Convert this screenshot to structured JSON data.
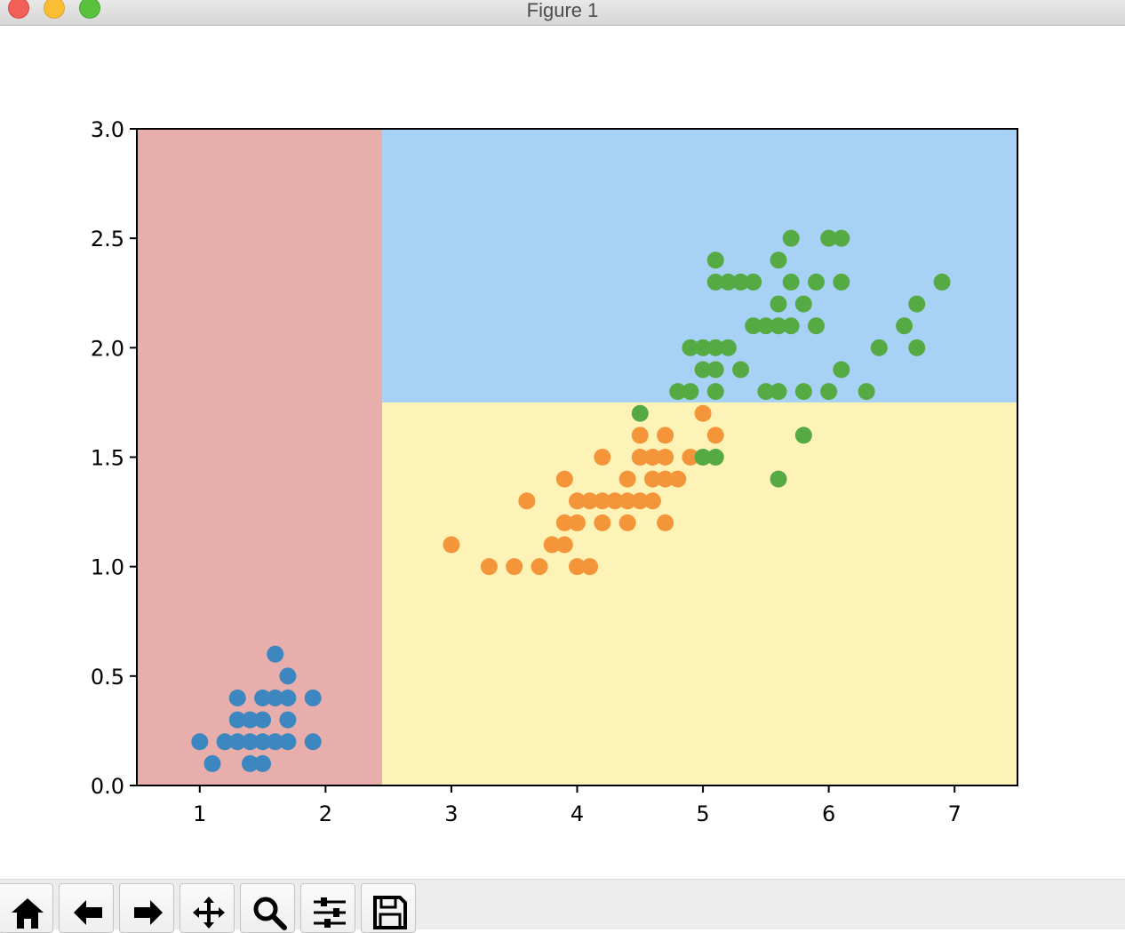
{
  "window": {
    "title": "Figure 1",
    "controls": [
      "close",
      "minimize",
      "maximize"
    ]
  },
  "toolbar": {
    "buttons": [
      {
        "name": "home-button",
        "icon": "home-icon"
      },
      {
        "name": "back-button",
        "icon": "arrow-left-icon"
      },
      {
        "name": "forward-button",
        "icon": "arrow-right-icon"
      },
      {
        "name": "pan-button",
        "icon": "move-icon"
      },
      {
        "name": "zoom-button",
        "icon": "magnifier-icon"
      },
      {
        "name": "configure-subplots-button",
        "icon": "sliders-icon"
      },
      {
        "name": "save-button",
        "icon": "floppy-disk-icon"
      }
    ]
  },
  "chart_data": {
    "type": "scatter",
    "title": "",
    "xlabel": "",
    "ylabel": "",
    "xlim": [
      0.5,
      7.5
    ],
    "ylim": [
      0.0,
      3.0
    ],
    "xticks": [
      "1",
      "2",
      "3",
      "4",
      "5",
      "6",
      "7"
    ],
    "yticks": [
      "0.0",
      "0.5",
      "1.0",
      "1.5",
      "2.0",
      "2.5",
      "3.0"
    ],
    "grid": false,
    "decision_regions": [
      {
        "x": [
          0.5,
          2.45
        ],
        "y": [
          0.0,
          3.0
        ],
        "color": "#e8aeab"
      },
      {
        "x": [
          2.45,
          7.5
        ],
        "y": [
          0.0,
          1.75
        ],
        "color": "#fdf3b7"
      },
      {
        "x": [
          2.45,
          7.5
        ],
        "y": [
          1.75,
          3.0
        ],
        "color": "#a8d2f5"
      }
    ],
    "series": [
      {
        "color": "#3d87c0",
        "points": [
          [
            1.0,
            0.2
          ],
          [
            1.1,
            0.1
          ],
          [
            1.2,
            0.2
          ],
          [
            1.3,
            0.2
          ],
          [
            1.3,
            0.3
          ],
          [
            1.3,
            0.4
          ],
          [
            1.4,
            0.1
          ],
          [
            1.4,
            0.2
          ],
          [
            1.4,
            0.3
          ],
          [
            1.5,
            0.1
          ],
          [
            1.5,
            0.2
          ],
          [
            1.5,
            0.3
          ],
          [
            1.5,
            0.4
          ],
          [
            1.6,
            0.2
          ],
          [
            1.6,
            0.4
          ],
          [
            1.6,
            0.6
          ],
          [
            1.7,
            0.2
          ],
          [
            1.7,
            0.3
          ],
          [
            1.7,
            0.4
          ],
          [
            1.7,
            0.5
          ],
          [
            1.9,
            0.2
          ],
          [
            1.9,
            0.4
          ]
        ]
      },
      {
        "color": "#f5953a",
        "points": [
          [
            3.0,
            1.1
          ],
          [
            3.3,
            1.0
          ],
          [
            3.5,
            1.0
          ],
          [
            3.6,
            1.3
          ],
          [
            3.7,
            1.0
          ],
          [
            3.8,
            1.1
          ],
          [
            3.9,
            1.1
          ],
          [
            3.9,
            1.2
          ],
          [
            3.9,
            1.4
          ],
          [
            4.0,
            1.0
          ],
          [
            4.0,
            1.2
          ],
          [
            4.0,
            1.3
          ],
          [
            4.1,
            1.0
          ],
          [
            4.1,
            1.3
          ],
          [
            4.2,
            1.2
          ],
          [
            4.2,
            1.3
          ],
          [
            4.2,
            1.5
          ],
          [
            4.3,
            1.3
          ],
          [
            4.4,
            1.2
          ],
          [
            4.4,
            1.3
          ],
          [
            4.4,
            1.4
          ],
          [
            4.5,
            1.3
          ],
          [
            4.5,
            1.5
          ],
          [
            4.5,
            1.6
          ],
          [
            4.6,
            1.3
          ],
          [
            4.6,
            1.4
          ],
          [
            4.6,
            1.5
          ],
          [
            4.7,
            1.2
          ],
          [
            4.7,
            1.4
          ],
          [
            4.7,
            1.5
          ],
          [
            4.7,
            1.6
          ],
          [
            4.8,
            1.4
          ],
          [
            4.9,
            1.5
          ],
          [
            5.0,
            1.7
          ],
          [
            5.1,
            1.6
          ]
        ]
      },
      {
        "color": "#55aa44",
        "points": [
          [
            4.5,
            1.7
          ],
          [
            4.8,
            1.8
          ],
          [
            4.9,
            1.8
          ],
          [
            4.9,
            2.0
          ],
          [
            5.0,
            1.5
          ],
          [
            5.0,
            1.9
          ],
          [
            5.0,
            2.0
          ],
          [
            5.1,
            1.5
          ],
          [
            5.1,
            1.8
          ],
          [
            5.1,
            1.9
          ],
          [
            5.1,
            2.0
          ],
          [
            5.1,
            2.3
          ],
          [
            5.1,
            2.4
          ],
          [
            5.2,
            2.0
          ],
          [
            5.2,
            2.3
          ],
          [
            5.3,
            1.9
          ],
          [
            5.3,
            2.3
          ],
          [
            5.4,
            2.1
          ],
          [
            5.4,
            2.3
          ],
          [
            5.5,
            1.8
          ],
          [
            5.5,
            2.1
          ],
          [
            5.6,
            1.4
          ],
          [
            5.6,
            1.8
          ],
          [
            5.6,
            2.1
          ],
          [
            5.6,
            2.2
          ],
          [
            5.6,
            2.4
          ],
          [
            5.7,
            2.1
          ],
          [
            5.7,
            2.3
          ],
          [
            5.7,
            2.5
          ],
          [
            5.8,
            1.6
          ],
          [
            5.8,
            1.8
          ],
          [
            5.8,
            2.2
          ],
          [
            5.9,
            2.1
          ],
          [
            5.9,
            2.3
          ],
          [
            6.0,
            1.8
          ],
          [
            6.0,
            2.5
          ],
          [
            6.1,
            1.9
          ],
          [
            6.1,
            2.3
          ],
          [
            6.1,
            2.5
          ],
          [
            6.3,
            1.8
          ],
          [
            6.4,
            2.0
          ],
          [
            6.6,
            2.1
          ],
          [
            6.7,
            2.0
          ],
          [
            6.7,
            2.2
          ],
          [
            6.9,
            2.3
          ]
        ]
      }
    ]
  }
}
